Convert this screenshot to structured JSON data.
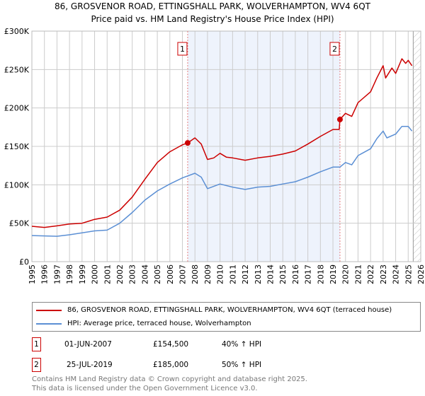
{
  "title_line1": "86, GROSVENOR ROAD, ETTINGSHALL PARK, WOLVERHAMPTON, WV4 6QT",
  "title_line2": "Price paid vs. HM Land Registry's House Price Index (HPI)",
  "chart_data": {
    "type": "line",
    "title": "86, GROSVENOR ROAD, ETTINGSHALL PARK, WOLVERHAMPTON, WV4 6QT - Price paid vs. HM Land Registry's House Price Index (HPI)",
    "xlim": [
      1995,
      2026
    ],
    "ylim": [
      0,
      300000
    ],
    "grid": true,
    "y_ticks": [
      0,
      50000,
      100000,
      150000,
      200000,
      250000,
      300000
    ],
    "y_tick_labels": [
      "£0",
      "£50K",
      "£100K",
      "£150K",
      "£200K",
      "£250K",
      "£300K"
    ],
    "x_tick_labels": [
      "1995",
      "1996",
      "1997",
      "1998",
      "1999",
      "2000",
      "2001",
      "2002",
      "2003",
      "2004",
      "2005",
      "2006",
      "2007",
      "2008",
      "2009",
      "2010",
      "2011",
      "2012",
      "2013",
      "2014",
      "2015",
      "2016",
      "2017",
      "2018",
      "2019",
      "2020",
      "2021",
      "2022",
      "2023",
      "2024",
      "2025",
      "2026"
    ],
    "forecast_hatch_from": 2025.4,
    "series": [
      {
        "name": "86, GROSVENOR ROAD, ETTINGSHALL PARK, WOLVERHAMPTON, WV4 6QT (terraced house)",
        "color": "#cc0000",
        "x": [
          1995,
          1996,
          1997,
          1998,
          1999,
          2000,
          2001,
          2002,
          2003,
          2004,
          2005,
          2006,
          2007,
          2007.42,
          2008,
          2008.5,
          2009,
          2009.5,
          2010,
          2010.5,
          2011,
          2012,
          2013,
          2014,
          2015,
          2016,
          2017,
          2018,
          2019,
          2019.5,
          2019.56,
          2020,
          2020.5,
          2021,
          2022,
          2022.5,
          2023,
          2023.2,
          2023.7,
          2024,
          2024.5,
          2024.8,
          2025,
          2025.3
        ],
        "y": [
          46000,
          44500,
          46600,
          49000,
          50000,
          55000,
          58000,
          67000,
          84000,
          107000,
          129000,
          143000,
          152000,
          154500,
          161000,
          153000,
          133000,
          135000,
          141000,
          136000,
          135000,
          132000,
          135000,
          137000,
          140000,
          144000,
          153000,
          163000,
          172000,
          172000,
          185000,
          193000,
          189000,
          207000,
          221000,
          239000,
          255000,
          239000,
          252000,
          245000,
          264000,
          258000,
          262000,
          255000
        ]
      },
      {
        "name": "HPI: Average price, terraced house, Wolverhampton",
        "color": "#5b8fd4",
        "x": [
          1995,
          1997,
          1998,
          2000,
          2001,
          2002,
          2003,
          2004,
          2005,
          2006,
          2007,
          2008,
          2008.5,
          2009,
          2010,
          2011,
          2012,
          2013,
          2014,
          2015,
          2016,
          2017,
          2018,
          2019,
          2019.56,
          2020,
          2020.5,
          2021,
          2022,
          2022.5,
          2023,
          2023.3,
          2024,
          2024.5,
          2025,
          2025.3
        ],
        "y": [
          34000,
          33000,
          35000,
          40000,
          41000,
          50000,
          64000,
          80000,
          92000,
          101000,
          109000,
          115000,
          110000,
          95000,
          101000,
          97000,
          94000,
          97000,
          98000,
          101000,
          104000,
          110000,
          117000,
          123000,
          123000,
          129000,
          126000,
          138000,
          147000,
          160000,
          170000,
          161000,
          166000,
          176000,
          176000,
          170000
        ]
      }
    ],
    "annotations": [
      {
        "label": "1",
        "x": 2007.42,
        "y": 154500
      },
      {
        "label": "2",
        "x": 2019.56,
        "y": 185000
      }
    ]
  },
  "legend": {
    "property": "86, GROSVENOR ROAD, ETTINGSHALL PARK, WOLVERHAMPTON, WV4 6QT (terraced house)",
    "hpi": "HPI: Average price, terraced house, Wolverhampton"
  },
  "sales": [
    {
      "num": "1",
      "date": "01-JUN-2007",
      "price": "£154,500",
      "hpi": "40% ↑ HPI"
    },
    {
      "num": "2",
      "date": "25-JUL-2019",
      "price": "£185,000",
      "hpi": "50% ↑ HPI"
    }
  ],
  "footer": {
    "line1": "Contains HM Land Registry data © Crown copyright and database right 2025.",
    "line2": "This data is licensed under the Open Government Licence v3.0."
  }
}
